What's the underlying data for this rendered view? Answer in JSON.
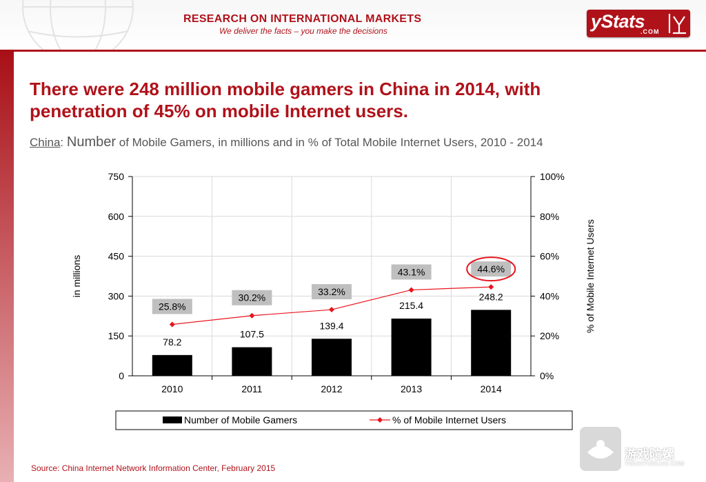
{
  "header": {
    "tagline_title": "RESEARCH ON INTERNATIONAL MARKETS",
    "tagline_sub": "We deliver the facts – you make the decisions",
    "logo_main": "yStats",
    "logo_com": ".COM",
    "brand_color": "#b0121a"
  },
  "headline": "There were 248 million mobile gamers in China in 2014, with penetration of 45% on mobile Internet users.",
  "subtitle": {
    "country": "China",
    "sep": ": ",
    "lead": "Number",
    "rest": " of Mobile Gamers, in millions and in % of Total Mobile Internet Users, 2010 - 2014"
  },
  "chart_data": {
    "type": "bar",
    "categories": [
      "2010",
      "2011",
      "2012",
      "2013",
      "2014"
    ],
    "series": [
      {
        "name": "Number of Mobile Gamers",
        "type": "bar",
        "axis": "left",
        "values": [
          78.2,
          107.5,
          139.4,
          215.4,
          248.2
        ],
        "labels": [
          "78.2",
          "107.5",
          "139.4",
          "215.4",
          "248.2"
        ],
        "color": "#000000"
      },
      {
        "name": "% of Mobile Internet Users",
        "type": "line",
        "axis": "right",
        "values": [
          25.8,
          30.2,
          33.2,
          43.1,
          44.6
        ],
        "labels": [
          "25.8%",
          "30.2%",
          "33.2%",
          "43.1%",
          "44.6%"
        ],
        "color": "#e8141e"
      }
    ],
    "ylabel": "in millions",
    "y2label": "% of Mobile Internet Users",
    "ylim": [
      0,
      750
    ],
    "yticks": [
      "0",
      "150",
      "300",
      "450",
      "600",
      "750"
    ],
    "y2lim": [
      0,
      100
    ],
    "y2ticks": [
      "0%",
      "20%",
      "40%",
      "60%",
      "80%",
      "100%"
    ],
    "grid": true,
    "legend": "bottom",
    "highlight_category": "2014"
  },
  "source": "Source: China Internet Network Information Center, February 2015",
  "watermark": {
    "text": "游戏陀螺",
    "url": "YOUXITUOLUO.COM"
  }
}
